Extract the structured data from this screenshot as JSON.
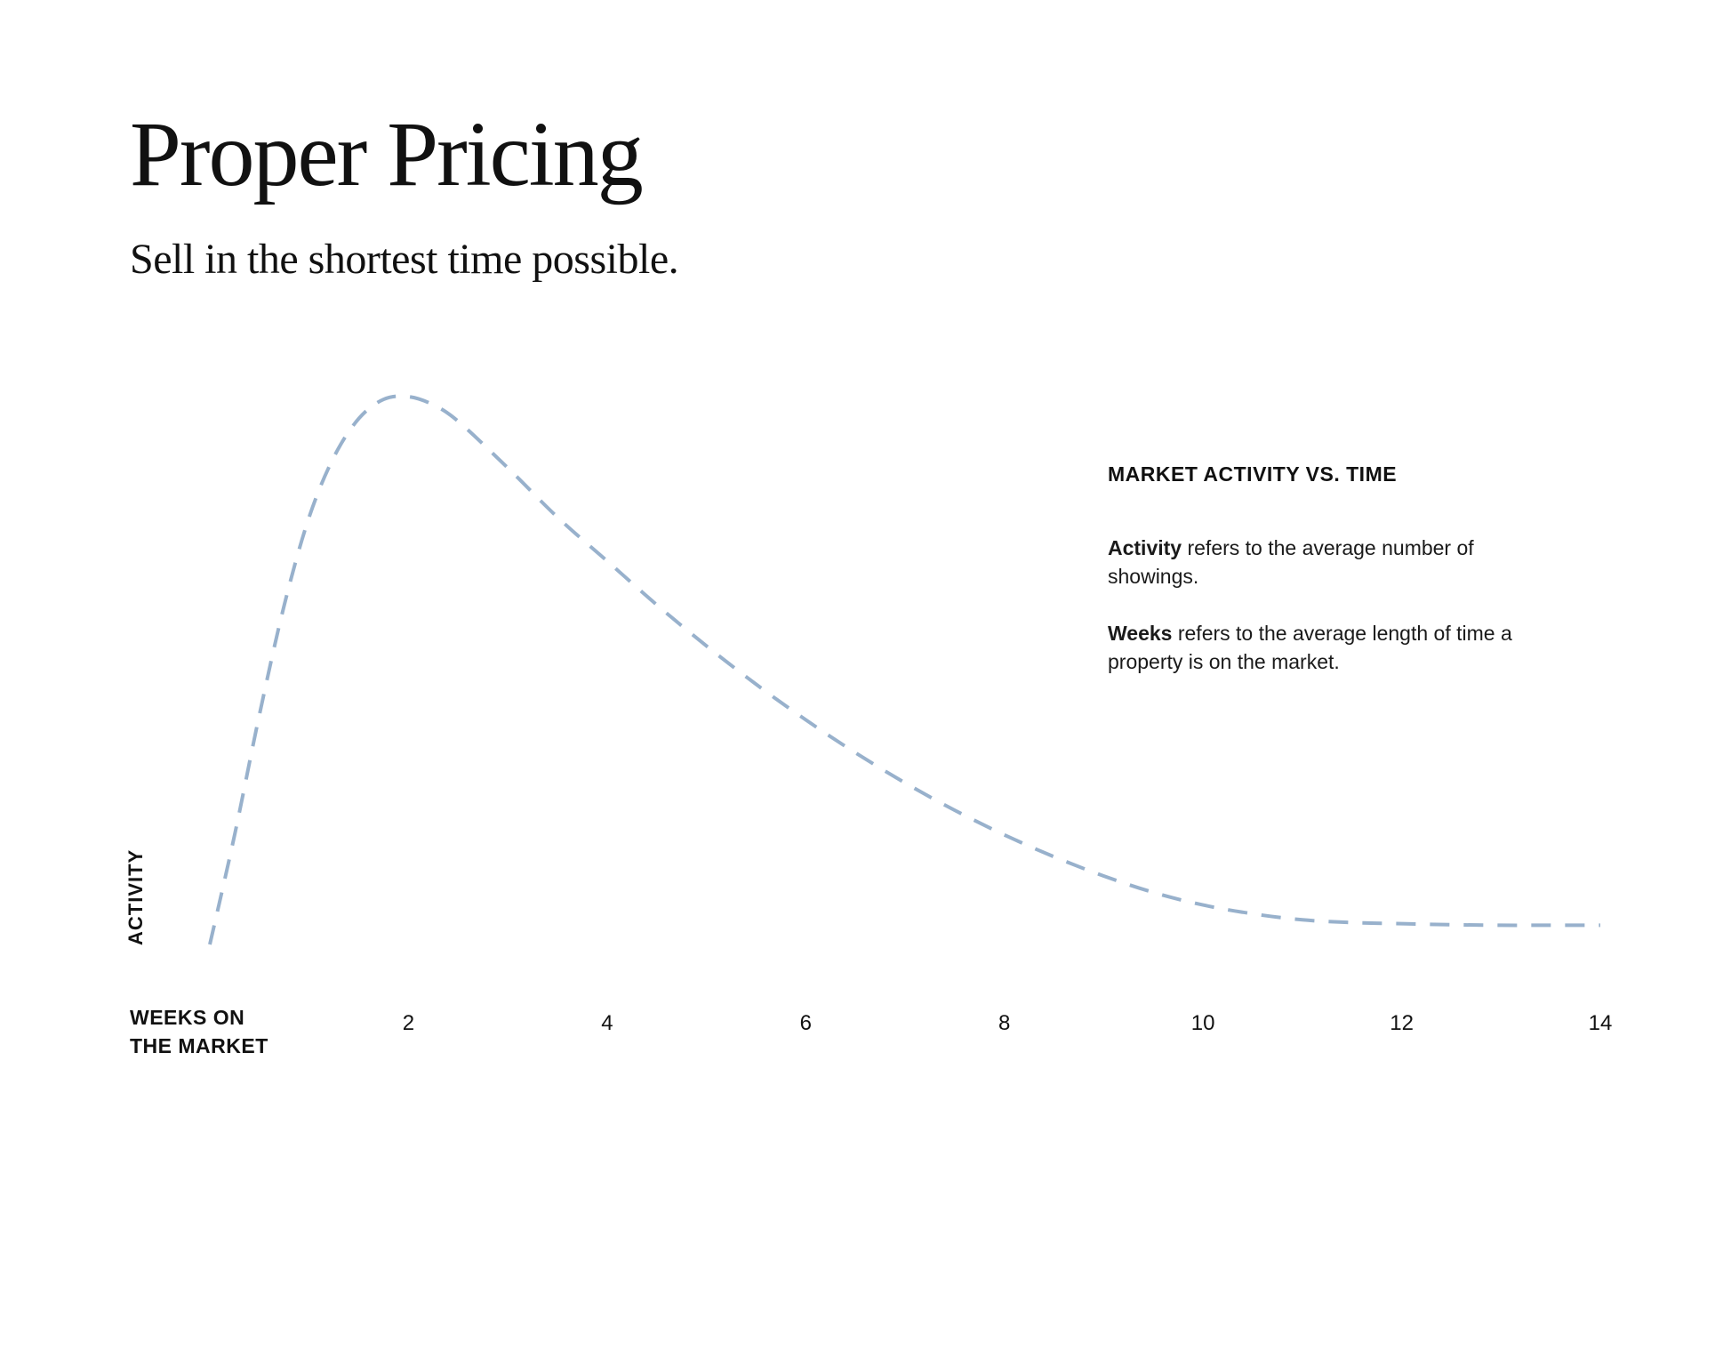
{
  "header": {
    "title": "Proper Pricing",
    "subtitle": "Sell in the shortest time possible."
  },
  "info_panel": {
    "heading": "MARKET ACTIVITY VS. TIME",
    "activity_term": "Activity",
    "activity_text": " refers to the average number of showings.",
    "weeks_term": "Weeks",
    "weeks_text": " refers to the average length of time a property is on the market."
  },
  "chart_data": {
    "type": "line",
    "title": "",
    "xlabel_lines": [
      "WEEKS ON",
      "THE MARKET"
    ],
    "ylabel": "ACTIVITY",
    "xlim": [
      0,
      14
    ],
    "ylim": [
      0,
      1
    ],
    "x_ticks": [
      2,
      4,
      6,
      8,
      10,
      12,
      14
    ],
    "series": [
      {
        "style": "dashed",
        "color": "#98b1cc",
        "x": [
          0,
          0.25,
          0.5,
          0.75,
          1,
          1.25,
          1.5,
          1.75,
          2,
          2.25,
          2.5,
          3,
          3.5,
          4,
          4.5,
          5,
          5.5,
          6,
          6.5,
          7,
          7.5,
          8,
          8.5,
          9,
          9.5,
          10,
          10.5,
          11,
          11.5,
          12,
          12.5,
          13,
          13.5,
          14
        ],
        "y": [
          0,
          0.2,
          0.42,
          0.62,
          0.78,
          0.89,
          0.96,
          0.995,
          1.0,
          0.985,
          0.955,
          0.87,
          0.78,
          0.7,
          0.62,
          0.545,
          0.475,
          0.41,
          0.35,
          0.295,
          0.245,
          0.2,
          0.16,
          0.125,
          0.095,
          0.072,
          0.056,
          0.045,
          0.04,
          0.038,
          0.036,
          0.035,
          0.035,
          0.035
        ]
      }
    ]
  }
}
